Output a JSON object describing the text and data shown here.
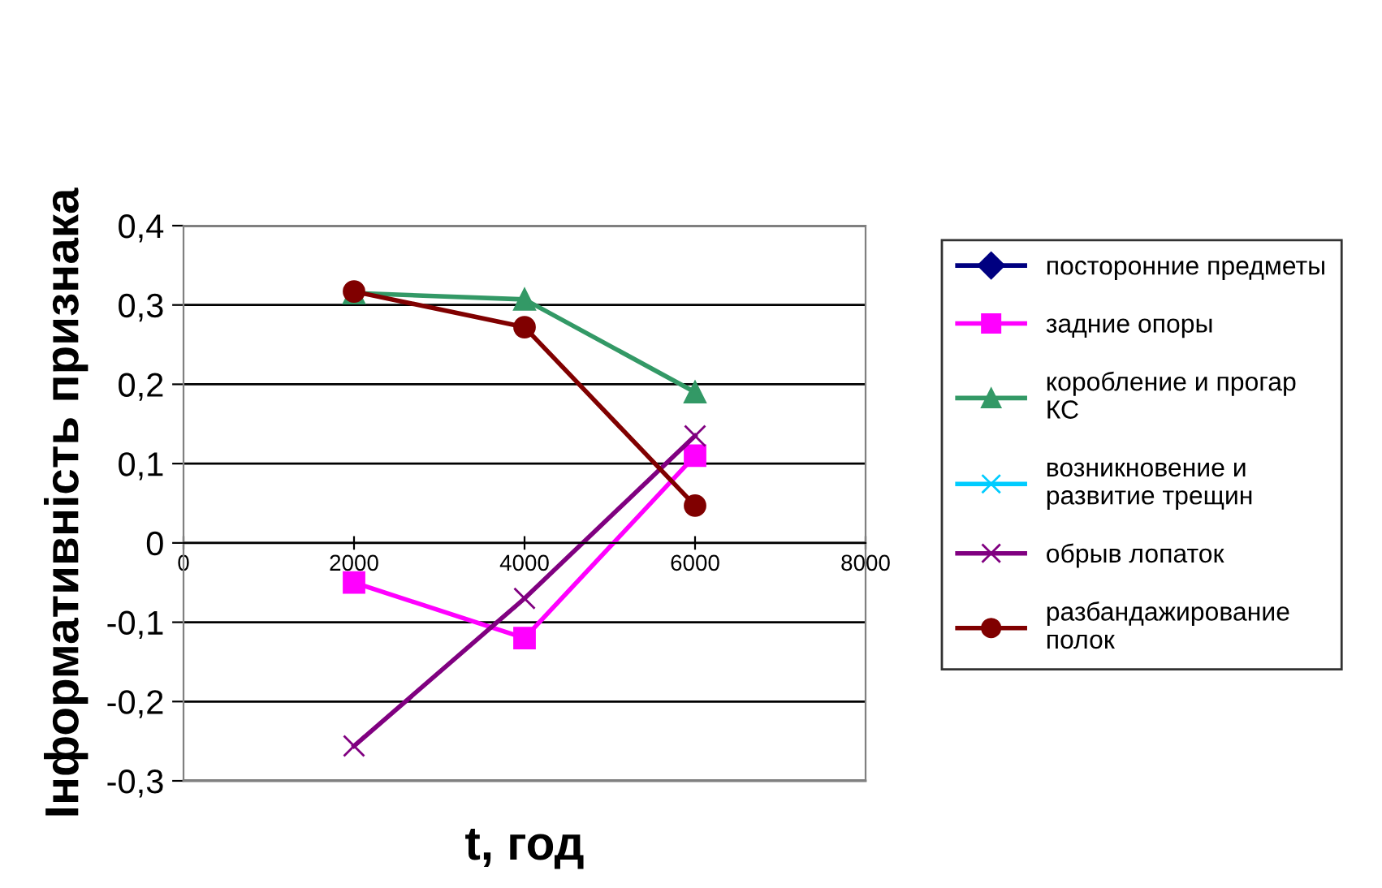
{
  "chart_data": {
    "type": "line",
    "xlabel": "t, год",
    "ylabel": "Інформативність признака",
    "x": [
      2000,
      4000,
      6000
    ],
    "series": [
      {
        "name": "посторонние предметы",
        "color": "#000080",
        "marker": "diamond",
        "values": [
          null,
          null,
          null
        ]
      },
      {
        "name": "задние опоры",
        "color": "#ff00ff",
        "marker": "square",
        "values": [
          -0.05,
          -0.12,
          0.11
        ]
      },
      {
        "name": "коробление и прогар\nКС",
        "color": "#339966",
        "marker": "triangle",
        "values": [
          0.315,
          0.307,
          0.19
        ]
      },
      {
        "name": "возникновение и\nразвитие трещин",
        "color": "#00ccff",
        "marker": "cross",
        "values": [
          null,
          null,
          null
        ]
      },
      {
        "name": "обрыв лопаток",
        "color": "#800080",
        "marker": "cross",
        "values": [
          -0.256,
          -0.07,
          0.135
        ]
      },
      {
        "name": "разбандажирование\nполок",
        "color": "#800000",
        "marker": "circle",
        "values": [
          0.317,
          0.272,
          0.047
        ]
      }
    ],
    "xlim": [
      0,
      8000
    ],
    "xticks": [
      0,
      2000,
      4000,
      6000,
      8000
    ],
    "ylim": [
      -0.3,
      0.4
    ],
    "yticks": [
      {
        "value": -0.3,
        "label": "-0,3"
      },
      {
        "value": -0.2,
        "label": "-0,2"
      },
      {
        "value": -0.1,
        "label": "-0,1"
      },
      {
        "value": 0,
        "label": "0"
      },
      {
        "value": 0.1,
        "label": "0,1"
      },
      {
        "value": 0.2,
        "label": "0,2"
      },
      {
        "value": 0.3,
        "label": "0,3"
      },
      {
        "value": 0.4,
        "label": "0,4"
      }
    ],
    "grid": "y",
    "legend": "right",
    "line_style": "solid"
  }
}
